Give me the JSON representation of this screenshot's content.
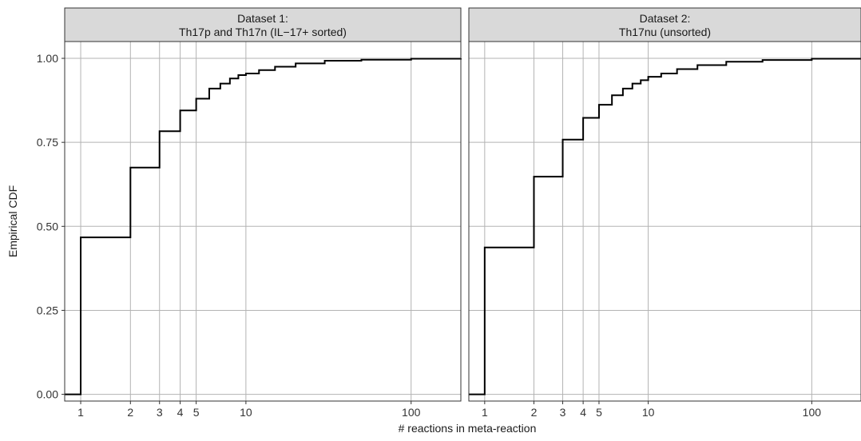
{
  "chart_data": {
    "type": "line",
    "step": true,
    "xscale": "log",
    "xlabel": "# reactions in meta-reaction",
    "ylabel": "Empirical CDF",
    "xticks": [
      1,
      2,
      3,
      4,
      5,
      10,
      100
    ],
    "yticks": [
      0.0,
      0.25,
      0.5,
      0.75,
      1.0
    ],
    "ytick_labels": [
      "0.00",
      "0.25",
      "0.50",
      "0.75",
      "1.00"
    ],
    "xlim": [
      0.8,
      200
    ],
    "ylim": [
      -0.02,
      1.05
    ],
    "grid": true,
    "line_color": "#000000",
    "panels": [
      {
        "title_line1": "Dataset 1:",
        "title_line2": "Th17p and Th17n (IL−17+ sorted)",
        "x": [
          1,
          2,
          3,
          4,
          5,
          6,
          7,
          8,
          9,
          10,
          12,
          15,
          20,
          30,
          50,
          100,
          200
        ],
        "y": [
          0.467,
          0.675,
          0.783,
          0.845,
          0.88,
          0.91,
          0.925,
          0.94,
          0.95,
          0.955,
          0.965,
          0.975,
          0.985,
          0.993,
          0.996,
          0.999,
          1.0
        ]
      },
      {
        "title_line1": "Dataset 2:",
        "title_line2": "Th17nu (unsorted)",
        "x": [
          1,
          2,
          3,
          4,
          5,
          6,
          7,
          8,
          9,
          10,
          12,
          15,
          20,
          30,
          50,
          100,
          200
        ],
        "y": [
          0.437,
          0.648,
          0.758,
          0.823,
          0.862,
          0.89,
          0.91,
          0.925,
          0.935,
          0.945,
          0.955,
          0.968,
          0.98,
          0.99,
          0.995,
          0.999,
          1.0
        ]
      }
    ]
  }
}
